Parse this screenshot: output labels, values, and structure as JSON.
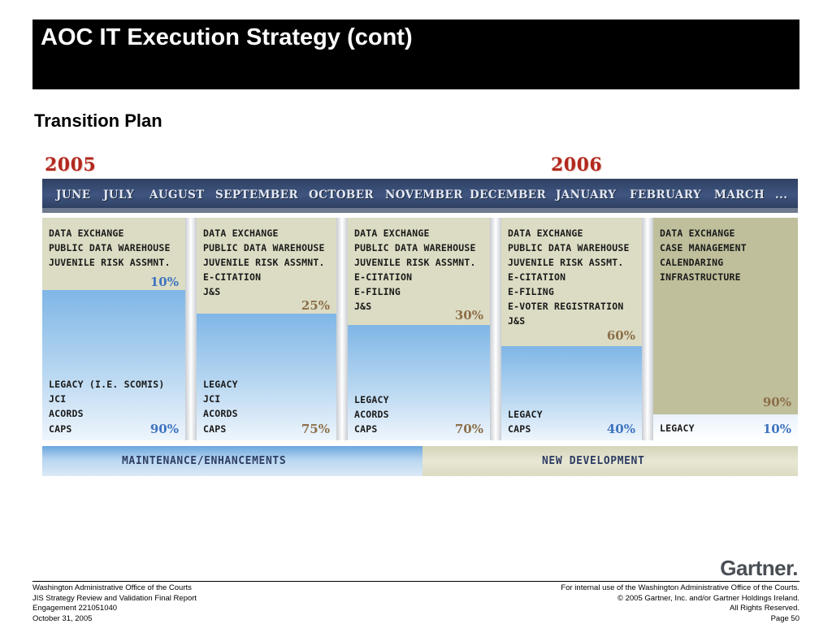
{
  "title": "AOC IT Execution Strategy (cont)",
  "subtitle": "Transition Plan",
  "years": [
    "2005",
    "2006"
  ],
  "months": [
    "JUNE",
    "JULY",
    "AUGUST",
    "SEPTEMBER",
    "OCTOBER",
    "NOVEMBER",
    "DECEMBER",
    "JANUARY",
    "FEBRUARY",
    "MARCH",
    "..."
  ],
  "columns": [
    {
      "top_items": [
        "DATA EXCHANGE",
        "PUBLIC DATA WAREHOUSE",
        "JUVENILE RISK ASSMNT."
      ],
      "top_pct": "10%",
      "bottom_items": [
        "LEGACY (I.E. SCOMIS)",
        "JCI",
        "ACORDS",
        "CAPS"
      ],
      "bottom_pct": "90%"
    },
    {
      "top_items": [
        "DATA EXCHANGE",
        "PUBLIC DATA WAREHOUSE",
        "JUVENILE RISK ASSMNT.",
        "E-CITATION",
        "J&S"
      ],
      "top_pct": "25%",
      "bottom_items": [
        "LEGACY",
        "JCI",
        "ACORDS",
        "CAPS"
      ],
      "bottom_pct": "75%"
    },
    {
      "top_items": [
        "DATA EXCHANGE",
        "PUBLIC DATA WAREHOUSE",
        "JUVENILE RISK ASSMNT.",
        "E-CITATION",
        "E-FILING",
        "J&S"
      ],
      "top_pct": "30%",
      "bottom_items": [
        "LEGACY",
        "ACORDS",
        "CAPS"
      ],
      "bottom_pct": "70%"
    },
    {
      "top_items": [
        "DATA EXCHANGE",
        "PUBLIC DATA WAREHOUSE",
        "JUVENILE RISK ASSMT.",
        "E-CITATION",
        "E-FILING",
        "E-VOTER REGISTRATION",
        "J&S"
      ],
      "top_pct": "60%",
      "bottom_items": [
        "LEGACY",
        "CAPS"
      ],
      "bottom_pct": "40%"
    },
    {
      "top_items": [
        "DATA EXCHANGE",
        "CASE MANAGEMENT",
        "CALENDARING",
        "INFRASTRUCTURE"
      ],
      "top_pct": "90%",
      "bottom_items": [
        "LEGACY"
      ],
      "bottom_pct": "10%"
    }
  ],
  "bottom_bar": {
    "left_label": "MAINTENANCE/ENHANCEMENTS",
    "right_label": "NEW DEVELOPMENT"
  },
  "colors": {
    "title_bg": "#000000",
    "year": "#b2281e",
    "month_bar": "#3f5580",
    "legacy_blue": "#7fb6e6",
    "new_tan": "#dcdcc4",
    "pct_blue": "#3f74c0",
    "pct_tan": "#8c6f48"
  },
  "logo": "Gartner.",
  "footer": {
    "left": [
      "Washington Administrative Office of the Courts",
      "JIS Strategy Review and Validation Final Report",
      "Engagement 221051040",
      "October 31, 2005"
    ],
    "right": [
      "For internal use of the Washington Administrative Office of the Courts.",
      "© 2005 Gartner, Inc. and/or Gartner Holdings Ireland.",
      "All Rights Reserved.",
      "Page 50"
    ]
  }
}
